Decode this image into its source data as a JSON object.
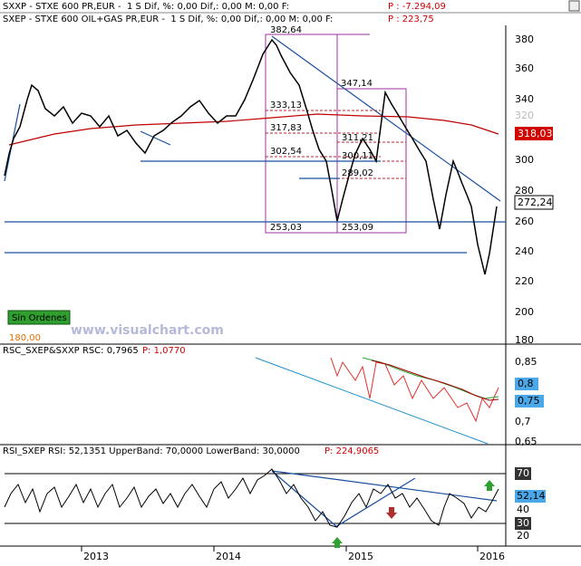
{
  "header": {
    "sxxp": {
      "text": "SXXP - STXE 600 PR,EUR -  1 S Dif, %: 0,00 Dif,: 0,00 M: 0,00 F:",
      "price": "P : -7.294,09"
    },
    "sxep": {
      "text": "SXEP - STXE 600 OIL+GAS PR,EUR -  1 S Dif, %: 0,00 Dif,: 0,00 M: 0,00 F:",
      "price": "P : 223,75"
    }
  },
  "price_panel": {
    "axis": [
      "380",
      "360",
      "340",
      "320",
      "300",
      "280",
      "260",
      "240",
      "220",
      "200",
      "180"
    ],
    "last_ma": "318,03",
    "last_price": "272,24",
    "annotations": [
      "382,64",
      "347,14",
      "333,13",
      "317,83",
      "311,21",
      "302,54",
      "300,11",
      "289,02",
      "253,03",
      "253,09"
    ],
    "orders_badge": "Sin Ordenes",
    "cursor_value": "180,00",
    "watermark": "www.visualchart.com"
  },
  "rsc_panel": {
    "text": "RSC_SXEP&SXXP RSC: 0,7965",
    "price": "P: 1,0770",
    "axis": [
      "0,85",
      "0,8",
      "0,75",
      "0,7",
      "0,65"
    ]
  },
  "rsi_panel": {
    "text": "RSI_SXEP RSI: 52,1351 UpperBand: 70,0000 LowerBand: 30,0000",
    "price": "P: 224,9065",
    "axis": [
      "70",
      "52,14",
      "40",
      "30",
      "20"
    ]
  },
  "time_axis": [
    "2013",
    "2014",
    "2015",
    "2016"
  ]
}
